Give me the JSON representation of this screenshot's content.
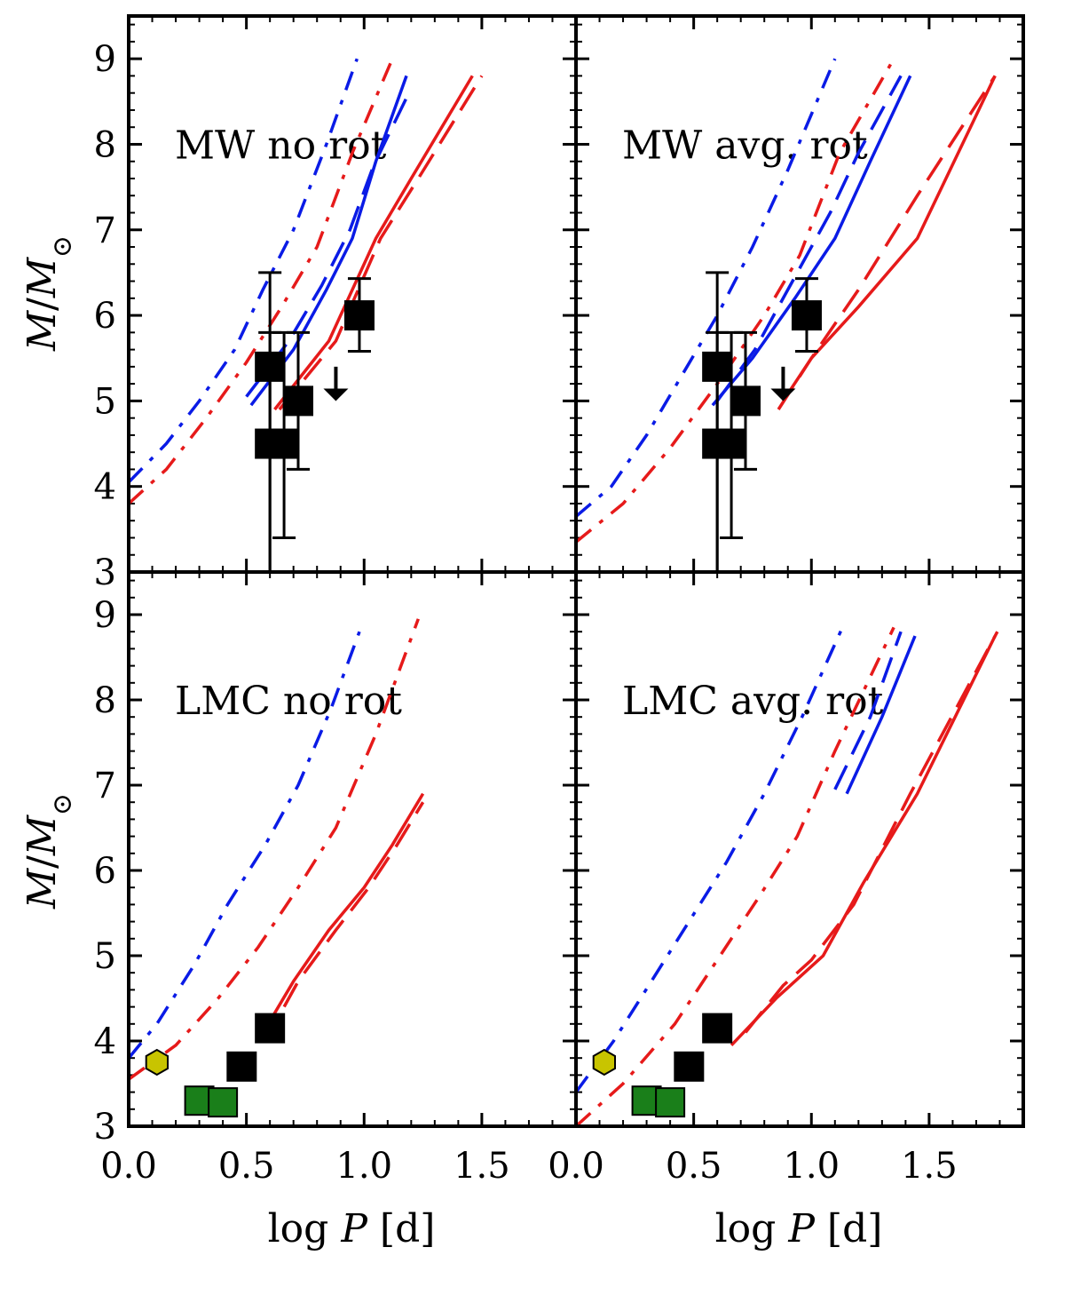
{
  "figure": {
    "xlabel_prefix": "log ",
    "xlabel_var": "P",
    "xlabel_unit": " [d]",
    "ylabel_var": "M",
    "ylabel_sep": "/",
    "ylabel_sub": "M",
    "ylabel_sun": "⊙"
  },
  "colors": {
    "blue": "#0a1be6",
    "red": "#e61a1a",
    "black": "#000000",
    "green": "#1a7f1a",
    "yellow": "#c8c400"
  },
  "xticks": [
    0.0,
    0.5,
    1.0,
    1.5
  ],
  "xtick_labels": [
    "0.0",
    "0.5",
    "1.0",
    "1.5"
  ],
  "yticks": [
    3,
    4,
    5,
    6,
    7,
    8,
    9
  ],
  "ytick_labels": [
    "3",
    "4",
    "5",
    "6",
    "7",
    "8",
    "9"
  ],
  "chart_data": [
    {
      "type": "line",
      "label": "MW no rot",
      "xlim": [
        0.0,
        1.9
      ],
      "ylim": [
        3.0,
        9.5
      ],
      "series": [
        {
          "color": "blue",
          "style": "dashdot",
          "x": [
            0.0,
            0.16,
            0.3,
            0.45,
            0.57,
            0.7,
            0.84,
            0.97
          ],
          "y": [
            4.05,
            4.5,
            5.0,
            5.6,
            6.3,
            7.0,
            8.0,
            9.0
          ]
        },
        {
          "color": "red",
          "style": "dashdot",
          "x": [
            0.0,
            0.16,
            0.33,
            0.5,
            0.65,
            0.8,
            0.95,
            1.12
          ],
          "y": [
            3.8,
            4.2,
            4.8,
            5.45,
            6.1,
            6.8,
            7.9,
            9.0
          ]
        },
        {
          "color": "blue",
          "style": "solid",
          "x": [
            0.52,
            0.7,
            0.84,
            0.95,
            1.05,
            1.18
          ],
          "y": [
            4.95,
            5.6,
            6.3,
            6.9,
            7.8,
            8.8
          ]
        },
        {
          "color": "blue",
          "style": "dashed",
          "x": [
            0.5,
            0.68,
            0.82,
            0.94,
            1.04,
            1.19
          ],
          "y": [
            5.05,
            5.7,
            6.35,
            7.0,
            7.75,
            8.6
          ]
        },
        {
          "color": "red",
          "style": "solid",
          "x": [
            0.62,
            0.85,
            1.05,
            1.2,
            1.46
          ],
          "y": [
            4.9,
            5.7,
            6.9,
            7.6,
            8.8
          ]
        },
        {
          "color": "red",
          "style": "dashed",
          "x": [
            0.64,
            0.88,
            1.07,
            1.23,
            1.5
          ],
          "y": [
            4.9,
            5.7,
            6.9,
            7.6,
            8.8
          ]
        }
      ],
      "points": [
        {
          "x": 0.6,
          "y": 5.4,
          "yerr_lo": 2.4,
          "yerr_hi": 1.1,
          "marker": "square",
          "color": "black"
        },
        {
          "x": 0.6,
          "y": 4.5,
          "yerr_lo": 1.6,
          "yerr_hi": 1.3,
          "marker": "square",
          "color": "black"
        },
        {
          "x": 0.66,
          "y": 4.5,
          "yerr_lo": 1.1,
          "yerr_hi": 1.3,
          "marker": "square",
          "color": "black"
        },
        {
          "x": 0.72,
          "y": 5.0,
          "yerr_lo": 0.8,
          "yerr_hi": 0.8,
          "marker": "square",
          "color": "black"
        },
        {
          "x": 0.98,
          "y": 6.0,
          "yerr_lo": 0.42,
          "yerr_hi": 0.43,
          "marker": "square",
          "color": "black"
        }
      ],
      "upper_limits": [
        {
          "x": 0.88,
          "y": 5.4
        }
      ]
    },
    {
      "type": "line",
      "label": "MW avg. rot",
      "xlim": [
        0.0,
        1.9
      ],
      "ylim": [
        3.0,
        9.5
      ],
      "series": [
        {
          "color": "blue",
          "style": "dashdot",
          "x": [
            0.0,
            0.15,
            0.3,
            0.45,
            0.6,
            0.75,
            0.9,
            1.1
          ],
          "y": [
            3.65,
            4.0,
            4.6,
            5.3,
            6.0,
            6.8,
            7.7,
            9.0
          ]
        },
        {
          "color": "red",
          "style": "dashdot",
          "x": [
            0.0,
            0.2,
            0.4,
            0.6,
            0.8,
            0.95,
            1.12,
            1.35
          ],
          "y": [
            3.35,
            3.8,
            4.45,
            5.2,
            6.0,
            6.7,
            7.9,
            9.0
          ]
        },
        {
          "color": "blue",
          "style": "solid",
          "x": [
            0.58,
            0.75,
            0.93,
            1.1,
            1.25,
            1.42
          ],
          "y": [
            4.95,
            5.5,
            6.2,
            6.9,
            7.8,
            8.8
          ]
        },
        {
          "color": "blue",
          "style": "dashed",
          "x": [
            0.6,
            0.76,
            0.92,
            1.08,
            1.2,
            1.38
          ],
          "y": [
            5.0,
            5.6,
            6.4,
            7.2,
            7.9,
            8.8
          ]
        },
        {
          "color": "red",
          "style": "solid",
          "x": [
            0.88,
            1.0,
            1.2,
            1.45,
            1.78
          ],
          "y": [
            5.0,
            5.5,
            6.1,
            6.9,
            8.8
          ]
        },
        {
          "color": "red",
          "style": "dashed",
          "x": [
            0.86,
            1.0,
            1.2,
            1.45,
            1.78
          ],
          "y": [
            4.9,
            5.5,
            6.3,
            7.4,
            8.8
          ]
        }
      ],
      "points": [
        {
          "x": 0.6,
          "y": 5.4,
          "yerr_lo": 2.4,
          "yerr_hi": 1.1,
          "marker": "square",
          "color": "black"
        },
        {
          "x": 0.6,
          "y": 4.5,
          "yerr_lo": 1.6,
          "yerr_hi": 1.3,
          "marker": "square",
          "color": "black"
        },
        {
          "x": 0.66,
          "y": 4.5,
          "yerr_lo": 1.1,
          "yerr_hi": 1.3,
          "marker": "square",
          "color": "black"
        },
        {
          "x": 0.72,
          "y": 5.0,
          "yerr_lo": 0.8,
          "yerr_hi": 0.8,
          "marker": "square",
          "color": "black"
        },
        {
          "x": 0.98,
          "y": 6.0,
          "yerr_lo": 0.42,
          "yerr_hi": 0.43,
          "marker": "square",
          "color": "black"
        }
      ],
      "upper_limits": [
        {
          "x": 0.88,
          "y": 5.4
        }
      ]
    },
    {
      "type": "line",
      "label": "LMC no rot",
      "xlim": [
        0.0,
        1.9
      ],
      "ylim": [
        3.0,
        9.5
      ],
      "series": [
        {
          "color": "blue",
          "style": "dashdot",
          "x": [
            0.0,
            0.12,
            0.28,
            0.42,
            0.58,
            0.72,
            0.86,
            0.98
          ],
          "y": [
            3.8,
            4.2,
            4.9,
            5.6,
            6.3,
            7.0,
            7.9,
            8.8
          ]
        },
        {
          "color": "red",
          "style": "dashdot",
          "x": [
            0.0,
            0.2,
            0.38,
            0.55,
            0.72,
            0.88,
            1.05,
            1.23
          ],
          "y": [
            3.55,
            3.95,
            4.5,
            5.1,
            5.8,
            6.5,
            7.6,
            8.95
          ]
        },
        {
          "color": "red",
          "style": "solid",
          "x": [
            0.55,
            0.7,
            0.85,
            1.0,
            1.12,
            1.25
          ],
          "y": [
            4.0,
            4.7,
            5.3,
            5.8,
            6.3,
            6.9
          ]
        },
        {
          "color": "red",
          "style": "dashed",
          "x": [
            0.58,
            0.72,
            0.88,
            1.02,
            1.14,
            1.25
          ],
          "y": [
            4.0,
            4.7,
            5.3,
            5.8,
            6.3,
            6.8
          ]
        }
      ],
      "points": [
        {
          "x": 0.6,
          "y": 4.15,
          "marker": "square",
          "color": "black"
        },
        {
          "x": 0.48,
          "y": 3.7,
          "marker": "square",
          "color": "black"
        },
        {
          "x": 0.3,
          "y": 3.3,
          "marker": "square",
          "color": "green"
        },
        {
          "x": 0.4,
          "y": 3.28,
          "marker": "square",
          "color": "green"
        },
        {
          "x": 0.12,
          "y": 3.75,
          "marker": "hexagon",
          "color": "yellow"
        }
      ]
    },
    {
      "type": "line",
      "label": "LMC avg. rot",
      "xlim": [
        0.0,
        1.9
      ],
      "ylim": [
        3.0,
        9.5
      ],
      "series": [
        {
          "color": "blue",
          "style": "dashdot",
          "x": [
            0.0,
            0.16,
            0.32,
            0.48,
            0.64,
            0.8,
            0.96,
            1.14
          ],
          "y": [
            3.4,
            4.0,
            4.7,
            5.4,
            6.1,
            6.9,
            7.8,
            8.9
          ]
        },
        {
          "color": "red",
          "style": "dashdot",
          "x": [
            0.0,
            0.2,
            0.42,
            0.6,
            0.78,
            0.94,
            1.1,
            1.35
          ],
          "y": [
            3.0,
            3.5,
            4.2,
            4.95,
            5.7,
            6.4,
            7.4,
            8.85
          ]
        },
        {
          "color": "blue",
          "style": "solid",
          "x": [
            1.15,
            1.3,
            1.44
          ],
          "y": [
            6.9,
            7.8,
            8.75
          ]
        },
        {
          "color": "blue",
          "style": "dashed",
          "x": [
            1.1,
            1.25,
            1.38
          ],
          "y": [
            6.95,
            7.8,
            8.8
          ]
        },
        {
          "color": "red",
          "style": "solid",
          "x": [
            0.66,
            0.85,
            1.05,
            1.22,
            1.45,
            1.78
          ],
          "y": [
            3.95,
            4.5,
            5.0,
            5.85,
            6.9,
            8.75
          ]
        },
        {
          "color": "red",
          "style": "dashed",
          "x": [
            0.72,
            0.88,
            1.0,
            1.18,
            1.42,
            1.79
          ],
          "y": [
            4.1,
            4.65,
            4.95,
            5.6,
            6.9,
            8.8
          ]
        }
      ],
      "points": [
        {
          "x": 0.6,
          "y": 4.15,
          "marker": "square",
          "color": "black"
        },
        {
          "x": 0.48,
          "y": 3.7,
          "marker": "square",
          "color": "black"
        },
        {
          "x": 0.3,
          "y": 3.3,
          "marker": "square",
          "color": "green"
        },
        {
          "x": 0.4,
          "y": 3.28,
          "marker": "square",
          "color": "green"
        },
        {
          "x": 0.12,
          "y": 3.75,
          "marker": "hexagon",
          "color": "yellow"
        }
      ]
    }
  ]
}
